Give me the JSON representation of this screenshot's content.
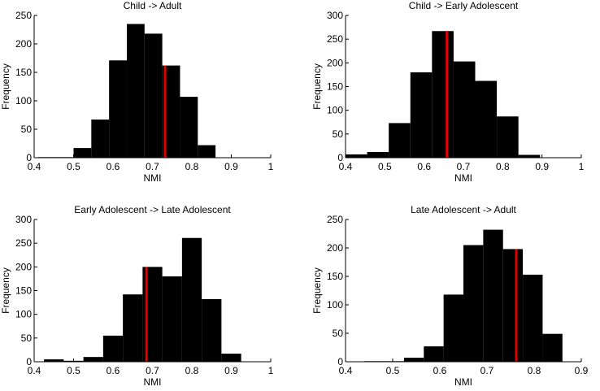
{
  "chart_data": [
    {
      "type": "bar",
      "title": "Child -> Adult",
      "xlabel": "NMI",
      "ylabel": "Frequency",
      "xlim": [
        0.4,
        1.0
      ],
      "ylim": [
        0,
        250
      ],
      "xticks": [
        "0.4",
        "0.5",
        "0.6",
        "0.7",
        "0.8",
        "0.9",
        "1"
      ],
      "yticks": [
        "0",
        "50",
        "100",
        "150",
        "200",
        "250"
      ],
      "bin_edges": [
        0.41,
        0.455,
        0.5,
        0.545,
        0.59,
        0.635,
        0.68,
        0.725,
        0.77,
        0.815,
        0.86
      ],
      "values": [
        1,
        1,
        17,
        67,
        171,
        235,
        218,
        162,
        107,
        22
      ],
      "marker_x": 0.732
    },
    {
      "type": "bar",
      "title": "Child -> Early Adolescent",
      "xlabel": "NMI",
      "ylabel": "Frequency",
      "xlim": [
        0.4,
        1.0
      ],
      "ylim": [
        0,
        300
      ],
      "xticks": [
        "0.4",
        "0.5",
        "0.6",
        "0.7",
        "0.8",
        "0.9",
        "1"
      ],
      "yticks": [
        "0",
        "50",
        "100",
        "150",
        "200",
        "250",
        "300"
      ],
      "bin_edges": [
        0.4,
        0.455,
        0.51,
        0.565,
        0.62,
        0.675,
        0.73,
        0.785,
        0.84,
        0.895
      ],
      "values": [
        7,
        12,
        73,
        180,
        267,
        203,
        162,
        87,
        6
      ],
      "marker_x": 0.658
    },
    {
      "type": "bar",
      "title": "Early Adolescent -> Late Adolescent",
      "xlabel": "NMI",
      "ylabel": "Frequency",
      "xlim": [
        0.4,
        1.0
      ],
      "ylim": [
        0,
        300
      ],
      "xticks": [
        "0.4",
        "0.5",
        "0.6",
        "0.7",
        "0.8",
        "0.9",
        "1"
      ],
      "yticks": [
        "0",
        "50",
        "100",
        "150",
        "200",
        "250",
        "300"
      ],
      "bin_edges": [
        0.425,
        0.475,
        0.525,
        0.575,
        0.625,
        0.675,
        0.725,
        0.775,
        0.825,
        0.875,
        0.925
      ],
      "values": [
        5,
        2,
        10,
        55,
        142,
        200,
        180,
        261,
        132,
        17
      ],
      "marker_x": 0.685
    },
    {
      "type": "bar",
      "title": "Late Adolescent -> Adult",
      "xlabel": "NMI",
      "ylabel": "Frequency",
      "xlim": [
        0.4,
        0.9
      ],
      "ylim": [
        0,
        250
      ],
      "xticks": [
        "0.4",
        "0.5",
        "0.6",
        "0.7",
        "0.8",
        "0.9"
      ],
      "yticks": [
        "0",
        "50",
        "100",
        "150",
        "200",
        "250"
      ],
      "bin_edges": [
        0.44,
        0.482,
        0.524,
        0.566,
        0.608,
        0.65,
        0.692,
        0.734,
        0.776,
        0.818,
        0.86
      ],
      "values": [
        1,
        1,
        7,
        27,
        118,
        205,
        232,
        198,
        153,
        49
      ],
      "marker_x": 0.762
    }
  ]
}
